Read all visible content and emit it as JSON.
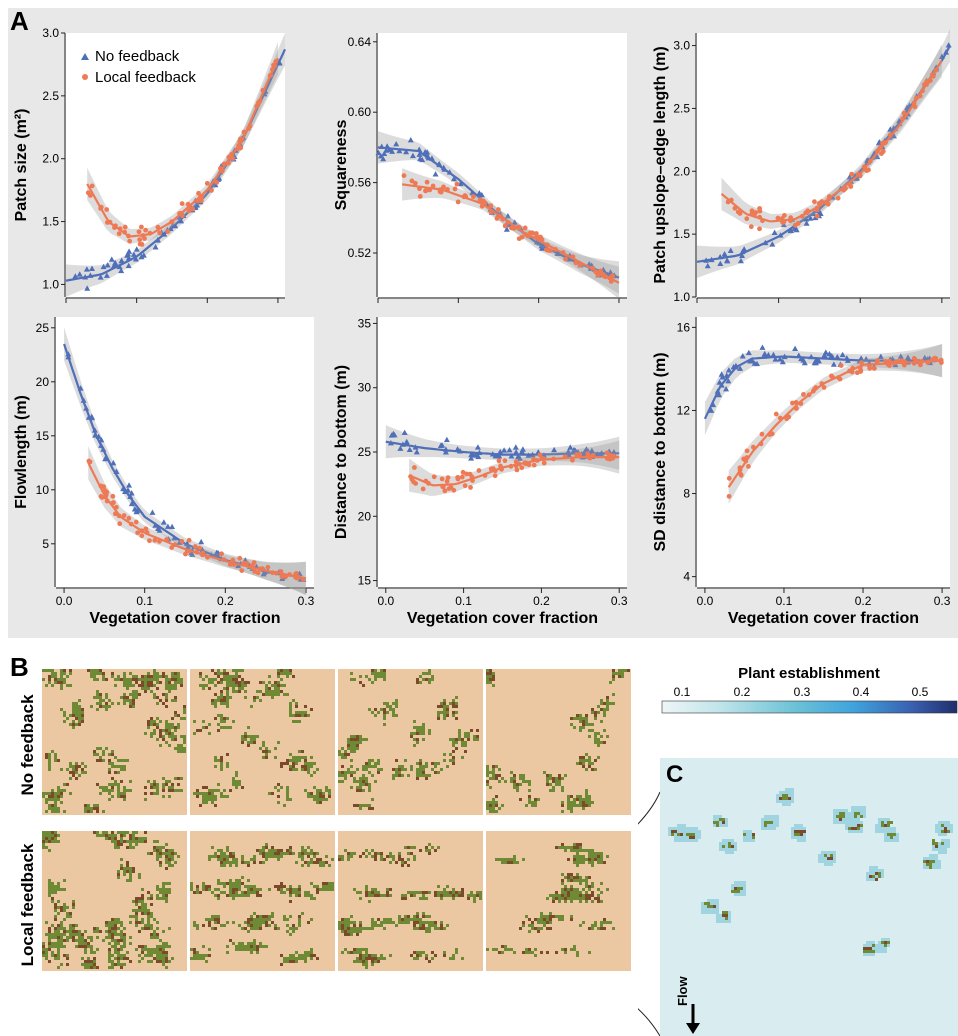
{
  "panel_labels": {
    "a": "A",
    "b": "B",
    "c": "C"
  },
  "legend": {
    "no_feedback": "No feedback",
    "local_feedback": "Local feedback"
  },
  "colors": {
    "no_feedback": "#4f6fb8",
    "local_feedback": "#ee7a55",
    "ribbon": "#9a9a9a",
    "bare_soil": "#ebc8a2",
    "vegetation": "#6f8a34",
    "vegetation_dark": "#7a4a2a",
    "panelC_bg": "#d9ecf0"
  },
  "panelB": {
    "row_labels": [
      "No feedback",
      "Local feedback"
    ]
  },
  "panelC": {
    "colorbar_title": "Plant establishment",
    "colorbar_ticks": [
      "0.1",
      "0.2",
      "0.3",
      "0.4",
      "0.5"
    ],
    "flow_label": "Flow"
  },
  "chart_data": [
    {
      "type": "scatter",
      "ylabel": "Patch size (m²)",
      "xlabel": "",
      "xlim": [
        0,
        0.31
      ],
      "ylim": [
        0.9,
        3.0
      ],
      "yticks": [
        "1.0",
        "1.5",
        "2.0",
        "2.5",
        "3.0"
      ],
      "xticks": [],
      "series": [
        {
          "name": "No feedback",
          "fit_x": [
            0.0,
            0.05,
            0.1,
            0.15,
            0.2,
            0.25,
            0.3,
            0.31
          ],
          "fit_y": [
            1.03,
            1.08,
            1.22,
            1.45,
            1.72,
            2.15,
            2.75,
            2.87
          ]
        },
        {
          "name": "Local feedback",
          "fit_x": [
            0.03,
            0.06,
            0.09,
            0.12,
            0.15,
            0.2,
            0.25,
            0.3
          ],
          "fit_y": [
            1.8,
            1.5,
            1.38,
            1.4,
            1.5,
            1.75,
            2.15,
            2.8
          ]
        }
      ]
    },
    {
      "type": "scatter",
      "ylabel": "Squareness",
      "xlabel": "",
      "xlim": [
        0,
        0.31
      ],
      "ylim": [
        0.495,
        0.645
      ],
      "yticks": [
        "0.52",
        "0.56",
        "0.60",
        "0.64"
      ],
      "xticks": [],
      "series": [
        {
          "name": "No feedback",
          "fit_x": [
            0.0,
            0.05,
            0.1,
            0.15,
            0.2,
            0.25,
            0.3
          ],
          "fit_y": [
            0.58,
            0.578,
            0.562,
            0.542,
            0.525,
            0.514,
            0.506
          ]
        },
        {
          "name": "Local feedback",
          "fit_x": [
            0.03,
            0.08,
            0.13,
            0.18,
            0.23,
            0.3
          ],
          "fit_y": [
            0.559,
            0.556,
            0.548,
            0.532,
            0.52,
            0.503
          ]
        }
      ]
    },
    {
      "type": "scatter",
      "ylabel": "Patch upslope–edge length (m)",
      "xlabel": "",
      "xlim": [
        0,
        0.31
      ],
      "ylim": [
        1.0,
        3.1
      ],
      "yticks": [
        "1.0",
        "1.5",
        "2.0",
        "2.5",
        "3.0"
      ],
      "xticks": [],
      "series": [
        {
          "name": "No feedback",
          "fit_x": [
            0.0,
            0.05,
            0.1,
            0.15,
            0.2,
            0.25,
            0.3,
            0.31
          ],
          "fit_y": [
            1.28,
            1.33,
            1.48,
            1.7,
            2.0,
            2.4,
            2.88,
            3.0
          ]
        },
        {
          "name": "Local feedback",
          "fit_x": [
            0.03,
            0.06,
            0.09,
            0.12,
            0.15,
            0.2,
            0.25,
            0.3
          ],
          "fit_y": [
            1.82,
            1.66,
            1.6,
            1.62,
            1.72,
            1.98,
            2.38,
            2.88
          ]
        }
      ]
    },
    {
      "type": "scatter",
      "ylabel": "Flowlength (m)",
      "xlabel": "Vegetation cover fraction",
      "xlim": [
        -0.01,
        0.31
      ],
      "ylim": [
        1.0,
        26
      ],
      "yticks": [
        "5",
        "10",
        "15",
        "20",
        "25"
      ],
      "xticks": [
        "0.0",
        "0.1",
        "0.2",
        "0.3"
      ],
      "series": [
        {
          "name": "No feedback",
          "fit_x": [
            0.0,
            0.02,
            0.04,
            0.06,
            0.08,
            0.1,
            0.15,
            0.2,
            0.25,
            0.3
          ],
          "fit_y": [
            23.5,
            19.0,
            15.0,
            12.0,
            9.5,
            7.5,
            5.0,
            3.5,
            2.5,
            1.8
          ]
        },
        {
          "name": "Local feedback",
          "fit_x": [
            0.03,
            0.05,
            0.07,
            0.1,
            0.15,
            0.2,
            0.25,
            0.3
          ],
          "fit_y": [
            12.5,
            9.5,
            7.5,
            6.0,
            4.5,
            3.4,
            2.5,
            1.8
          ]
        }
      ]
    },
    {
      "type": "scatter",
      "ylabel": "Distance to bottom (m)",
      "xlabel": "Vegetation cover fraction",
      "xlim": [
        -0.01,
        0.31
      ],
      "ylim": [
        14.5,
        35.5
      ],
      "yticks": [
        "15",
        "20",
        "25",
        "30",
        "35"
      ],
      "xticks": [
        "0.0",
        "0.1",
        "0.2",
        "0.3"
      ],
      "series": [
        {
          "name": "No feedback",
          "fit_x": [
            0.0,
            0.05,
            0.1,
            0.15,
            0.2,
            0.25,
            0.3
          ],
          "fit_y": [
            25.8,
            25.3,
            25.0,
            24.8,
            24.8,
            24.9,
            24.9
          ]
        },
        {
          "name": "Local feedback",
          "fit_x": [
            0.03,
            0.06,
            0.09,
            0.12,
            0.15,
            0.2,
            0.25,
            0.3
          ],
          "fit_y": [
            23.2,
            22.4,
            22.5,
            23.1,
            23.8,
            24.4,
            24.6,
            24.6
          ]
        }
      ]
    },
    {
      "type": "scatter",
      "ylabel": "SD distance to bottom (m)",
      "xlabel": "Vegetation cover fraction",
      "xlim": [
        -0.01,
        0.31
      ],
      "ylim": [
        3.5,
        16.5
      ],
      "yticks": [
        "4",
        "8",
        "12",
        "16"
      ],
      "xticks": [
        "0.0",
        "0.1",
        "0.2",
        "0.3"
      ],
      "series": [
        {
          "name": "No feedback",
          "fit_x": [
            0.0,
            0.02,
            0.04,
            0.06,
            0.1,
            0.15,
            0.2,
            0.25,
            0.3
          ],
          "fit_y": [
            11.6,
            13.2,
            14.1,
            14.5,
            14.6,
            14.5,
            14.4,
            14.4,
            14.4
          ]
        },
        {
          "name": "Local feedback",
          "fit_x": [
            0.03,
            0.06,
            0.09,
            0.12,
            0.15,
            0.2,
            0.25,
            0.3
          ],
          "fit_y": [
            8.3,
            10.0,
            11.3,
            12.4,
            13.3,
            14.2,
            14.3,
            14.4
          ]
        }
      ]
    }
  ]
}
